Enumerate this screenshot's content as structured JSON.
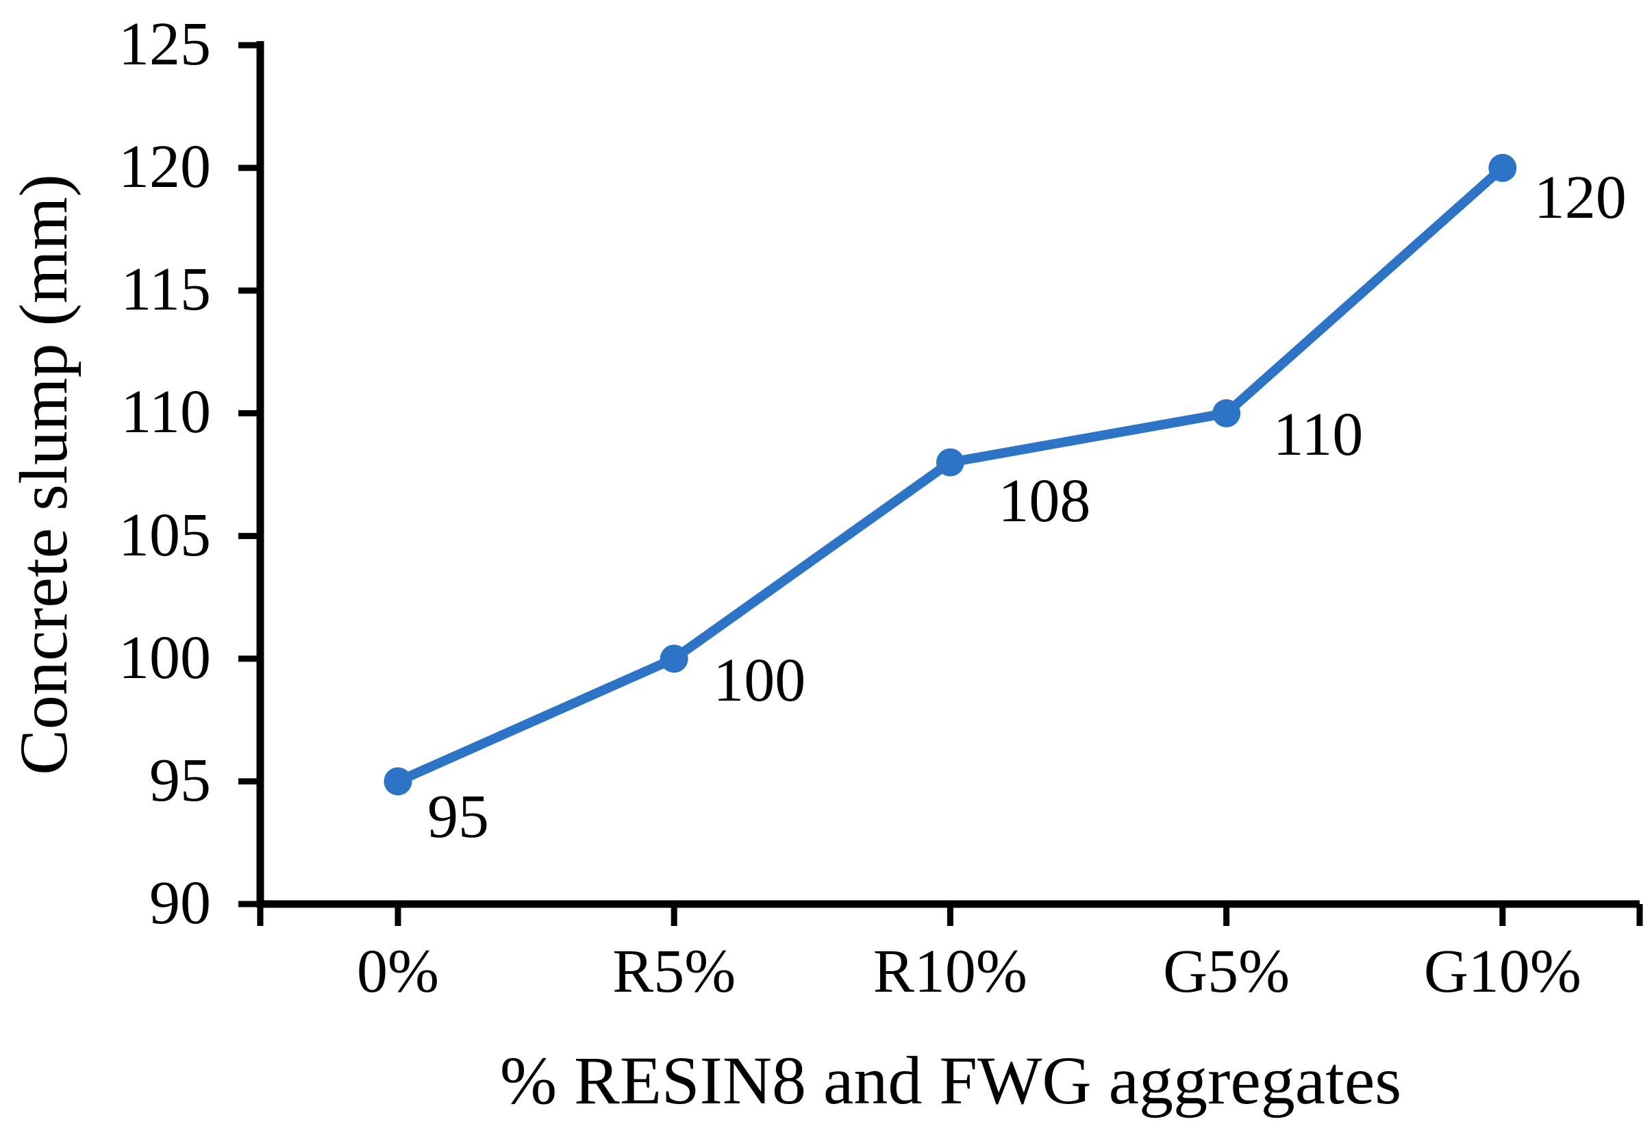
{
  "figure": {
    "background_color": "#ffffff",
    "axis_color": "#000000"
  },
  "chart_data": {
    "type": "line",
    "title": "",
    "xlabel": "% RESIN8 and FWG aggregates",
    "ylabel": "Concrete slump (mm)",
    "categories": [
      "0%",
      "R5%",
      "R10%",
      "G5%",
      "G10%"
    ],
    "values": [
      95,
      100,
      108,
      110,
      120
    ],
    "data_labels": [
      "95",
      "100",
      "108",
      "110",
      "120"
    ],
    "series_name": "Concrete slump (mm)",
    "ylim": [
      90,
      125
    ],
    "yticks": [
      90,
      95,
      100,
      105,
      110,
      115,
      120,
      125
    ],
    "grid": false,
    "legend": false,
    "line_color": "#2E74C6",
    "marker": "circle"
  }
}
